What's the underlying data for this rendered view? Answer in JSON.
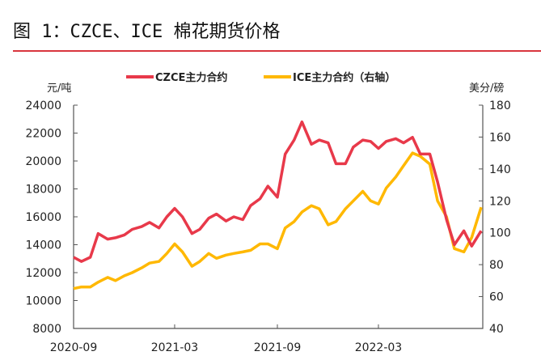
{
  "chart_data": {
    "type": "line",
    "title": "图 1：CZCE、ICE 棉花期货价格",
    "ylabel_left": "元/吨",
    "ylabel_right": "美分/磅",
    "ylim_left": [
      8000,
      24000
    ],
    "ylim_right": [
      40,
      180
    ],
    "yticks_left": [
      "24000",
      "22000",
      "20000",
      "18000",
      "16000",
      "14000",
      "12000",
      "10000",
      "8000"
    ],
    "yticks_right": [
      "180",
      "160",
      "140",
      "120",
      "100",
      "80",
      "60",
      "40"
    ],
    "xticks": [
      "2020-09",
      "2021-03",
      "2021-09",
      "2022-03"
    ],
    "xlim": [
      "2020-09-01",
      "2022-09-01"
    ],
    "grid": false,
    "legend": "top",
    "colors": {
      "czce": "#e8394a",
      "ice": "#ffb800",
      "rule": "#d9363e"
    },
    "x": [
      "2020-09-01",
      "2020-09-15",
      "2020-10-01",
      "2020-10-15",
      "2020-11-01",
      "2020-11-15",
      "2020-12-01",
      "2020-12-15",
      "2021-01-01",
      "2021-01-15",
      "2021-02-01",
      "2021-02-15",
      "2021-03-01",
      "2021-03-15",
      "2021-04-01",
      "2021-04-15",
      "2021-05-01",
      "2021-05-15",
      "2021-06-01",
      "2021-06-15",
      "2021-07-01",
      "2021-07-15",
      "2021-08-01",
      "2021-08-15",
      "2021-09-01",
      "2021-09-15",
      "2021-10-01",
      "2021-10-15",
      "2021-11-01",
      "2021-11-15",
      "2021-12-01",
      "2021-12-15",
      "2022-01-01",
      "2022-01-15",
      "2022-02-01",
      "2022-02-15",
      "2022-03-01",
      "2022-03-15",
      "2022-04-01",
      "2022-04-15",
      "2022-05-01",
      "2022-05-15",
      "2022-06-01",
      "2022-06-15",
      "2022-07-01",
      "2022-07-15",
      "2022-08-01",
      "2022-08-15",
      "2022-09-01"
    ],
    "series": [
      {
        "name": "CZCE主力合约",
        "axis": "left",
        "values": [
          13100,
          12800,
          13100,
          14800,
          14400,
          14500,
          14700,
          15100,
          15300,
          15600,
          15200,
          16000,
          16600,
          16000,
          14800,
          15100,
          15900,
          16200,
          15700,
          16000,
          15800,
          16800,
          17300,
          18200,
          17400,
          20500,
          21500,
          22800,
          21200,
          21500,
          21300,
          19800,
          19800,
          21000,
          21500,
          21400,
          20900,
          21400,
          21600,
          21300,
          21700,
          20500,
          20500,
          18500,
          15800,
          14000,
          15000,
          13900,
          15000
        ]
      },
      {
        "name": "ICE主力合约（右轴）",
        "axis": "right",
        "values": [
          65,
          66,
          66,
          69,
          72,
          70,
          73,
          75,
          78,
          81,
          82,
          87,
          93,
          88,
          79,
          82,
          87,
          84,
          86,
          87,
          88,
          89,
          93,
          93,
          90,
          103,
          107,
          113,
          117,
          115,
          105,
          107,
          115,
          120,
          126,
          120,
          118,
          128,
          135,
          142,
          150,
          148,
          143,
          120,
          110,
          90,
          88,
          97,
          116
        ]
      }
    ]
  }
}
